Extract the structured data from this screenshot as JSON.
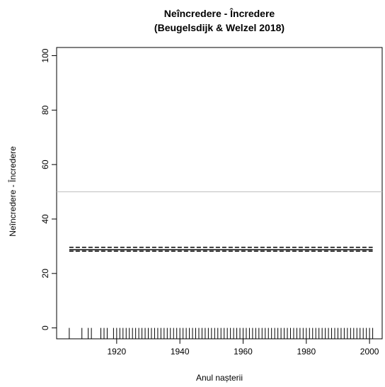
{
  "chart_data": {
    "type": "line",
    "title": "Neîncredere - Încredere",
    "subtitle": "(Beugelsdijk & Welzel 2018)",
    "x_label": "Anul nașterii",
    "y_label": "Neîncredere - Încredere",
    "xlim": [
      1901,
      2004
    ],
    "ylim": [
      -4,
      103
    ],
    "xticks": [
      1920,
      1940,
      1960,
      1980,
      2000
    ],
    "yticks": [
      0,
      20,
      40,
      60,
      80,
      100
    ],
    "reference_line": {
      "value": 50,
      "color": "#bebebe"
    },
    "series": [
      {
        "x": [
          1905,
          2001
        ],
        "values": [
          28.7,
          28.7
        ],
        "color": "#000000",
        "dash": false
      },
      {
        "x": [
          1905,
          2001
        ],
        "values": [
          29.6,
          29.6
        ],
        "color": "#000000",
        "dash": true
      },
      {
        "x": [
          1905,
          2001
        ],
        "values": [
          28.2,
          28.2
        ],
        "color": "#000000",
        "dash": true
      }
    ],
    "rug": [
      1905,
      1909,
      1911,
      1912,
      1915,
      1916,
      1917,
      1919,
      1920,
      1921,
      1922,
      1923,
      1924,
      1925,
      1926,
      1927,
      1928,
      1929,
      1930,
      1931,
      1932,
      1933,
      1934,
      1935,
      1936,
      1937,
      1938,
      1939,
      1940,
      1941,
      1942,
      1943,
      1944,
      1945,
      1946,
      1947,
      1948,
      1949,
      1950,
      1951,
      1952,
      1953,
      1954,
      1955,
      1956,
      1957,
      1958,
      1959,
      1960,
      1961,
      1962,
      1963,
      1964,
      1965,
      1966,
      1967,
      1968,
      1969,
      1970,
      1971,
      1972,
      1973,
      1974,
      1975,
      1976,
      1977,
      1978,
      1979,
      1980,
      1981,
      1982,
      1983,
      1984,
      1985,
      1986,
      1987,
      1988,
      1989,
      1990,
      1991,
      1992,
      1993,
      1994,
      1995,
      1996,
      1997,
      1998,
      1999,
      2000,
      2001
    ]
  }
}
